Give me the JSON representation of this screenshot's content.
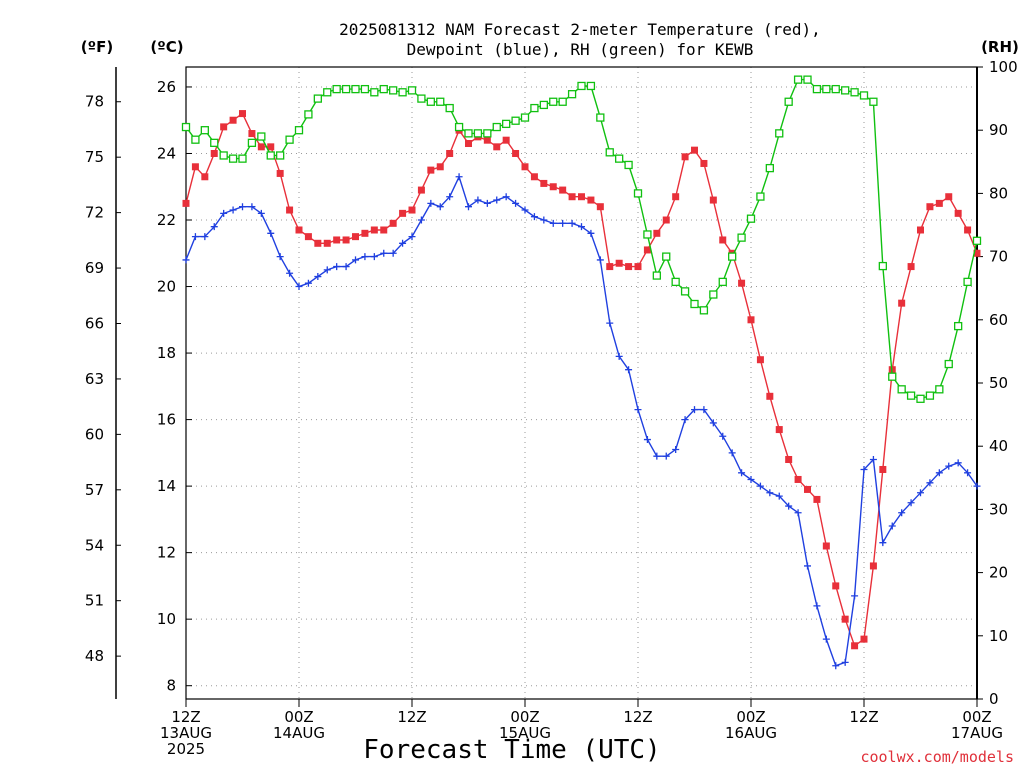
{
  "title_line1": "2025081312 NAM Forecast 2-meter Temperature (red),",
  "title_line2": "Dewpoint (blue), RH (green) for KEWB",
  "units": {
    "f": "(ºF)",
    "c": "(ºC)",
    "rh": "(RH)"
  },
  "xlabel": "Forecast Time (UTC)",
  "credit": "coolwx.com/models",
  "colors": {
    "temperature": "#e8303a",
    "dewpoint": "#2040e0",
    "rh": "#10c010",
    "grid": "#9a9a9a"
  },
  "chart_data": {
    "type": "line",
    "title": "2025081312 NAM Forecast 2-meter Temperature (red), Dewpoint (blue), RH (green) for KEWB",
    "xlabel": "Forecast Time (UTC)",
    "x_range_hours": [
      0,
      84
    ],
    "x_ticks": [
      {
        "hour": 0,
        "label": "12Z",
        "sub1": "13AUG",
        "sub2": "2025"
      },
      {
        "hour": 12,
        "label": "00Z",
        "sub1": "14AUG",
        "sub2": ""
      },
      {
        "hour": 24,
        "label": "12Z",
        "sub1": "",
        "sub2": ""
      },
      {
        "hour": 36,
        "label": "00Z",
        "sub1": "15AUG",
        "sub2": ""
      },
      {
        "hour": 48,
        "label": "12Z",
        "sub1": "",
        "sub2": ""
      },
      {
        "hour": 60,
        "label": "00Z",
        "sub1": "16AUG",
        "sub2": ""
      },
      {
        "hour": 72,
        "label": "12Z",
        "sub1": "",
        "sub2": ""
      },
      {
        "hour": 84,
        "label": "00Z",
        "sub1": "17AUG",
        "sub2": ""
      }
    ],
    "y_left_c": {
      "range": [
        7.6,
        26.6
      ],
      "ticks": [
        8,
        10,
        12,
        14,
        16,
        18,
        20,
        22,
        24,
        26
      ]
    },
    "y_left_f": {
      "ticks": [
        48,
        51,
        54,
        57,
        60,
        63,
        66,
        69,
        72,
        75,
        78
      ]
    },
    "y_right_rh": {
      "range": [
        0,
        100
      ],
      "ticks": [
        0,
        10,
        20,
        30,
        40,
        50,
        60,
        70,
        80,
        90,
        100
      ]
    },
    "grid": true,
    "series": [
      {
        "name": "Temperature",
        "unit": "C",
        "marker": "filled-square",
        "hours": [
          0,
          1,
          2,
          3,
          4,
          5,
          6,
          7,
          8,
          9,
          10,
          11,
          12,
          13,
          14,
          15,
          16,
          17,
          18,
          19,
          20,
          21,
          22,
          23,
          24,
          25,
          26,
          27,
          28,
          29,
          30,
          31,
          32,
          33,
          34,
          35,
          36,
          37,
          38,
          39,
          40,
          41,
          42,
          43,
          44,
          45,
          46,
          47,
          48,
          49,
          50,
          51,
          52,
          53,
          54,
          55,
          56,
          57,
          58,
          59,
          60,
          61,
          62,
          63,
          64,
          65,
          66,
          67,
          68,
          69,
          70,
          71,
          72,
          73,
          74,
          75,
          76,
          77,
          78,
          79,
          80,
          81,
          82,
          83,
          84
        ],
        "values": [
          22.5,
          23.6,
          23.3,
          24.0,
          24.8,
          25.0,
          25.2,
          24.6,
          24.2,
          24.2,
          23.4,
          22.3,
          21.7,
          21.5,
          21.3,
          21.3,
          21.4,
          21.4,
          21.5,
          21.6,
          21.7,
          21.7,
          21.9,
          22.2,
          22.3,
          22.9,
          23.5,
          23.6,
          24.0,
          24.7,
          24.3,
          24.5,
          24.4,
          24.2,
          24.4,
          24.0,
          23.6,
          23.3,
          23.1,
          23.0,
          22.9,
          22.7,
          22.7,
          22.6,
          22.4,
          20.6,
          20.7,
          20.6,
          20.6,
          21.1,
          21.6,
          22.0,
          22.7,
          23.9,
          24.1,
          23.7,
          22.6,
          21.4,
          21.0,
          20.1,
          19.0,
          17.8,
          16.7,
          15.7,
          14.8,
          14.2,
          13.9,
          13.6,
          12.2,
          11.0,
          10.0,
          9.2,
          9.4,
          11.6,
          14.5,
          17.5,
          19.5,
          20.6,
          21.7,
          22.4,
          22.5,
          22.7,
          22.2,
          21.7,
          21.0
        ]
      },
      {
        "name": "Dewpoint",
        "unit": "C",
        "marker": "plus",
        "hours": [
          0,
          1,
          2,
          3,
          4,
          5,
          6,
          7,
          8,
          9,
          10,
          11,
          12,
          13,
          14,
          15,
          16,
          17,
          18,
          19,
          20,
          21,
          22,
          23,
          24,
          25,
          26,
          27,
          28,
          29,
          30,
          31,
          32,
          33,
          34,
          35,
          36,
          37,
          38,
          39,
          40,
          41,
          42,
          43,
          44,
          45,
          46,
          47,
          48,
          49,
          50,
          51,
          52,
          53,
          54,
          55,
          56,
          57,
          58,
          59,
          60,
          61,
          62,
          63,
          64,
          65,
          66,
          67,
          68,
          69,
          70,
          71,
          72,
          73,
          74,
          75,
          76,
          77,
          78,
          79,
          80,
          81,
          82,
          83,
          84
        ],
        "values": [
          20.8,
          21.5,
          21.5,
          21.8,
          22.2,
          22.3,
          22.4,
          22.4,
          22.2,
          21.6,
          20.9,
          20.4,
          20.0,
          20.1,
          20.3,
          20.5,
          20.6,
          20.6,
          20.8,
          20.9,
          20.9,
          21.0,
          21.0,
          21.3,
          21.5,
          22.0,
          22.5,
          22.4,
          22.7,
          23.3,
          22.4,
          22.6,
          22.5,
          22.6,
          22.7,
          22.5,
          22.3,
          22.1,
          22.0,
          21.9,
          21.9,
          21.9,
          21.8,
          21.6,
          20.8,
          18.9,
          17.9,
          17.5,
          16.3,
          15.4,
          14.9,
          14.9,
          15.1,
          16.0,
          16.3,
          16.3,
          15.9,
          15.5,
          15.0,
          14.4,
          14.2,
          14.0,
          13.8,
          13.7,
          13.4,
          13.2,
          11.6,
          10.4,
          9.4,
          8.6,
          8.7,
          10.7,
          14.5,
          14.8,
          12.3,
          12.8,
          13.2,
          13.5,
          13.8,
          14.1,
          14.4,
          14.6,
          14.7,
          14.4,
          14.0
        ]
      },
      {
        "name": "RH",
        "unit": "%",
        "marker": "open-square",
        "hours": [
          0,
          1,
          2,
          3,
          4,
          5,
          6,
          7,
          8,
          9,
          10,
          11,
          12,
          13,
          14,
          15,
          16,
          17,
          18,
          19,
          20,
          21,
          22,
          23,
          24,
          25,
          26,
          27,
          28,
          29,
          30,
          31,
          32,
          33,
          34,
          35,
          36,
          37,
          38,
          39,
          40,
          41,
          42,
          43,
          44,
          45,
          46,
          47,
          48,
          49,
          50,
          51,
          52,
          53,
          54,
          55,
          56,
          57,
          58,
          59,
          60,
          61,
          62,
          63,
          64,
          65,
          66,
          67,
          68,
          69,
          70,
          71,
          72,
          73,
          74,
          75,
          76,
          77,
          78,
          79,
          80,
          81,
          82,
          83,
          84
        ],
        "values": [
          90.5,
          88.5,
          90.0,
          88.0,
          86.0,
          85.5,
          85.5,
          88.0,
          89.0,
          86.0,
          86.0,
          88.5,
          90.0,
          92.5,
          95.0,
          96.0,
          96.5,
          96.5,
          96.5,
          96.5,
          96.0,
          96.5,
          96.3,
          96.0,
          96.3,
          95.0,
          94.5,
          94.5,
          93.5,
          90.5,
          89.5,
          89.5,
          89.5,
          90.5,
          91.0,
          91.5,
          92.0,
          93.5,
          94.0,
          94.5,
          94.5,
          95.7,
          97.0,
          97.0,
          92.0,
          86.5,
          85.5,
          84.5,
          80.0,
          73.5,
          67.0,
          70.0,
          66.0,
          64.5,
          62.5,
          61.5,
          64.0,
          66.0,
          70.0,
          73.0,
          76.0,
          79.5,
          84.0,
          89.5,
          94.5,
          98.0,
          98.0,
          96.5,
          96.5,
          96.5,
          96.3,
          96.0,
          95.5,
          94.5,
          68.5,
          51.0,
          49.0,
          48.0,
          47.5,
          48.0,
          49.0,
          53.0,
          59.0,
          66.0,
          72.5
        ]
      }
    ]
  }
}
